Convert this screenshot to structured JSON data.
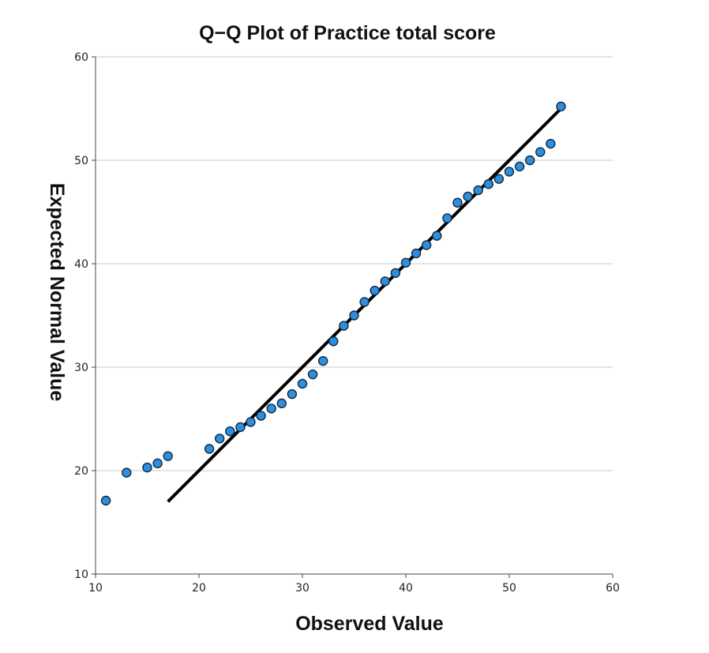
{
  "chart_data": {
    "type": "scatter",
    "title": "Q−Q Plot of Practice total score",
    "xlabel": "Observed Value",
    "ylabel": "Expected Normal Value",
    "xlim": [
      10,
      60
    ],
    "ylim": [
      10,
      60
    ],
    "xticks": [
      10,
      20,
      30,
      40,
      50,
      60
    ],
    "yticks": [
      10,
      20,
      30,
      40,
      50,
      60
    ],
    "grid": "horizontal",
    "legend": "none",
    "point_color": "#2f8fdc",
    "point_edge_color": "#0d2a44",
    "line_color": "#000000",
    "points": [
      {
        "x": 11,
        "y": 17.1
      },
      {
        "x": 13,
        "y": 19.8
      },
      {
        "x": 15,
        "y": 20.3
      },
      {
        "x": 16,
        "y": 20.7
      },
      {
        "x": 17,
        "y": 21.4
      },
      {
        "x": 21,
        "y": 22.1
      },
      {
        "x": 22,
        "y": 23.1
      },
      {
        "x": 23,
        "y": 23.8
      },
      {
        "x": 24,
        "y": 24.2
      },
      {
        "x": 25,
        "y": 24.7
      },
      {
        "x": 26,
        "y": 25.3
      },
      {
        "x": 27,
        "y": 26.0
      },
      {
        "x": 28,
        "y": 26.5
      },
      {
        "x": 29,
        "y": 27.4
      },
      {
        "x": 30,
        "y": 28.4
      },
      {
        "x": 31,
        "y": 29.3
      },
      {
        "x": 32,
        "y": 30.6
      },
      {
        "x": 33,
        "y": 32.5
      },
      {
        "x": 34,
        "y": 34.0
      },
      {
        "x": 35,
        "y": 35.0
      },
      {
        "x": 36,
        "y": 36.3
      },
      {
        "x": 37,
        "y": 37.4
      },
      {
        "x": 38,
        "y": 38.3
      },
      {
        "x": 39,
        "y": 39.1
      },
      {
        "x": 40,
        "y": 40.1
      },
      {
        "x": 41,
        "y": 41.0
      },
      {
        "x": 42,
        "y": 41.8
      },
      {
        "x": 43,
        "y": 42.7
      },
      {
        "x": 44,
        "y": 44.4
      },
      {
        "x": 45,
        "y": 45.9
      },
      {
        "x": 46,
        "y": 46.5
      },
      {
        "x": 47,
        "y": 47.1
      },
      {
        "x": 48,
        "y": 47.7
      },
      {
        "x": 49,
        "y": 48.2
      },
      {
        "x": 50,
        "y": 48.9
      },
      {
        "x": 51,
        "y": 49.4
      },
      {
        "x": 52,
        "y": 50.0
      },
      {
        "x": 53,
        "y": 50.8
      },
      {
        "x": 54,
        "y": 51.6
      },
      {
        "x": 55,
        "y": 55.2
      }
    ],
    "reference_line": {
      "x1": 17,
      "y1": 17,
      "x2": 55,
      "y2": 55
    }
  }
}
